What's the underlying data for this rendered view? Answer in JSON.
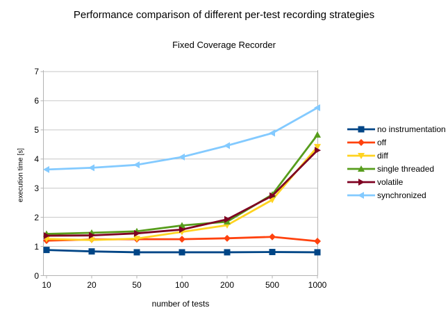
{
  "window": {
    "background": "#FFFFFF"
  },
  "colors": {
    "grid": "#C6C6C6",
    "axis": "#B3B3B3",
    "text": "#000000"
  },
  "chart_data": {
    "type": "line",
    "title": "Performance comparison of different per-test recording strategies",
    "subtitle": "Fixed Coverage Recorder",
    "xlabel": "number of tests",
    "ylabel": "execution time [s]",
    "categories": [
      "10",
      "20",
      "50",
      "100",
      "200",
      "500",
      "1000"
    ],
    "x_scale": "categorical",
    "ylim": [
      0,
      7
    ],
    "y_ticks": [
      0,
      1,
      2,
      3,
      4,
      5,
      6,
      7
    ],
    "grid": "horizontal-major",
    "legend_position": "right",
    "series": [
      {
        "name": "no instrumentation",
        "color": "#004586",
        "marker": "square",
        "values": [
          0.88,
          0.83,
          0.8,
          0.8,
          0.8,
          0.81,
          0.8
        ]
      },
      {
        "name": "off",
        "color": "#FF420E",
        "marker": "diamond",
        "values": [
          1.2,
          1.24,
          1.25,
          1.25,
          1.28,
          1.33,
          1.18
        ]
      },
      {
        "name": "diff",
        "color": "#FFD320",
        "marker": "triangle-down",
        "values": [
          1.26,
          1.22,
          1.27,
          1.5,
          1.73,
          2.6,
          4.42
        ]
      },
      {
        "name": "single threaded",
        "color": "#579D1C",
        "marker": "triangle-up",
        "values": [
          1.43,
          1.47,
          1.52,
          1.72,
          1.85,
          2.78,
          4.83
        ]
      },
      {
        "name": "volatile",
        "color": "#7E0021",
        "marker": "triangle-right",
        "values": [
          1.37,
          1.38,
          1.45,
          1.58,
          1.93,
          2.74,
          4.3
        ]
      },
      {
        "name": "synchronized",
        "color": "#83CAFF",
        "marker": "triangle-left",
        "values": [
          3.64,
          3.7,
          3.8,
          4.07,
          4.46,
          4.89,
          5.76
        ]
      }
    ]
  }
}
